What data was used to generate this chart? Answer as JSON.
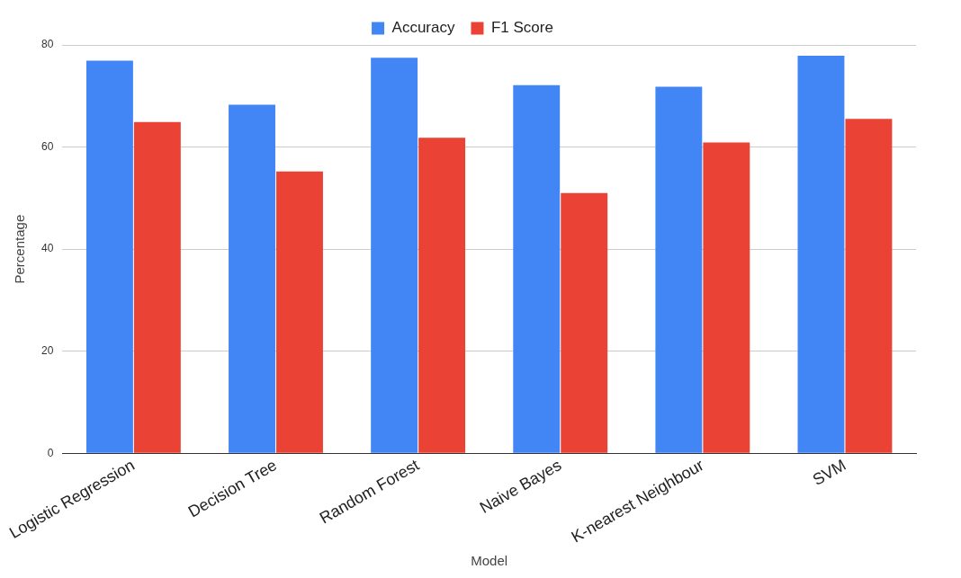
{
  "chart_data": {
    "type": "bar",
    "xlabel": "Model",
    "ylabel": "Percentage",
    "categories": [
      "Logistic Regression",
      "Decision Tree",
      "Random Forest",
      "Naive Bayes",
      "K-nearest Neighbour",
      "SVM"
    ],
    "series": [
      {
        "name": "Accuracy",
        "color": "#4285f4",
        "values": [
          76.9,
          68.3,
          77.5,
          72.1,
          71.8,
          77.9
        ]
      },
      {
        "name": "F1 Score",
        "color": "#ea4335",
        "values": [
          64.9,
          55.2,
          61.8,
          51.0,
          60.9,
          65.5
        ]
      }
    ],
    "ylim": [
      0,
      80
    ],
    "yticks": [
      0,
      20,
      40,
      60,
      80
    ],
    "grid": "y",
    "legend": "top"
  }
}
